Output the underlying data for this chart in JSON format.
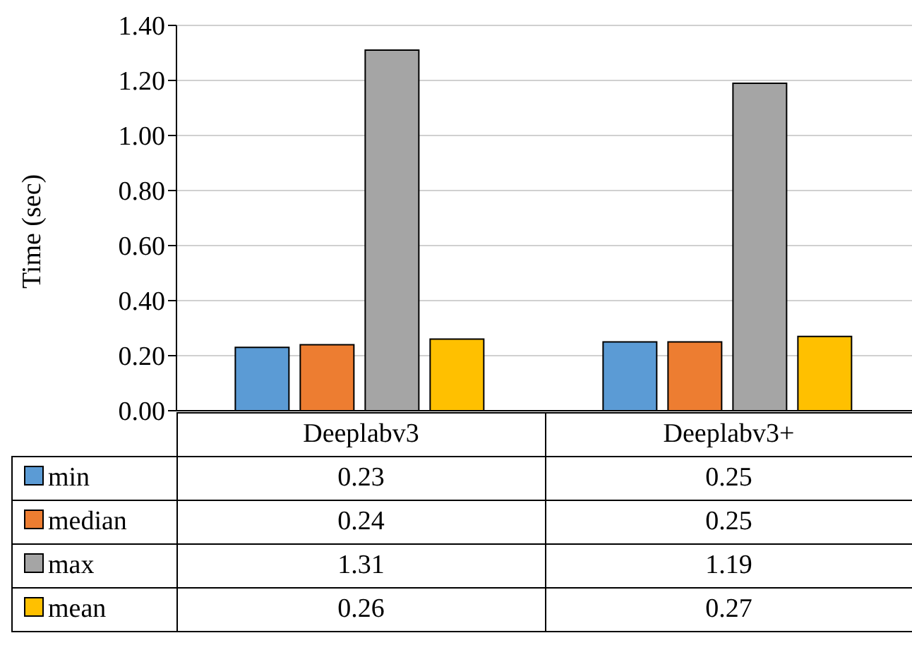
{
  "chart_data": {
    "type": "bar",
    "ylabel": "Time (sec)",
    "categories": [
      "Deeplabv3",
      "Deeplabv3+"
    ],
    "series": [
      {
        "name": "min",
        "color": "#5b9bd5",
        "values": [
          0.23,
          0.25
        ]
      },
      {
        "name": "median",
        "color": "#ed7d31",
        "values": [
          0.24,
          0.25
        ]
      },
      {
        "name": "max",
        "color": "#a5a5a5",
        "values": [
          1.31,
          1.19
        ]
      },
      {
        "name": "mean",
        "color": "#ffc000",
        "values": [
          0.26,
          0.27
        ]
      }
    ],
    "ylim": [
      0,
      1.4
    ],
    "yticks": [
      {
        "value": 0,
        "label": "0.00"
      },
      {
        "value": 0.2,
        "label": "0.20"
      },
      {
        "value": 0.4,
        "label": "0.40"
      },
      {
        "value": 0.6,
        "label": "0.60"
      },
      {
        "value": 0.8,
        "label": "0.80"
      },
      {
        "value": 1,
        "label": "1.00"
      },
      {
        "value": 1.2,
        "label": "1.20"
      },
      {
        "value": 1.4,
        "label": "1.40"
      }
    ],
    "grid": "y",
    "legend": "bottom",
    "data_labels": true
  }
}
